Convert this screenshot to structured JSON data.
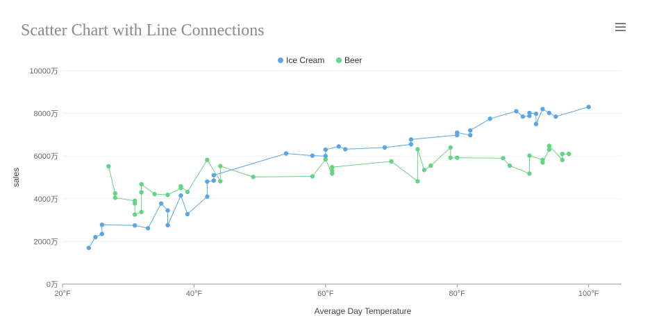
{
  "page": {
    "title": "Scatter Chart with Line Connections",
    "menu_icon": "hamburger-menu-icon"
  },
  "chart_data": {
    "type": "scatter",
    "title": "Scatter Chart with Line Connections",
    "xlabel": "Average Day Temperature",
    "ylabel": "sales",
    "xlim": [
      20,
      105
    ],
    "ylim": [
      0,
      10000
    ],
    "x_ticks": [
      "20°F",
      "40°F",
      "60°F",
      "80°F",
      "100°F"
    ],
    "x_tick_values": [
      20,
      40,
      60,
      80,
      100
    ],
    "y_ticks": [
      "0万",
      "2000万",
      "4000万",
      "6000万",
      "8000万",
      "10000万"
    ],
    "y_tick_values": [
      0,
      2000,
      4000,
      6000,
      8000,
      10000
    ],
    "grid": true,
    "legend_position": "top-center",
    "lines_connect_points": true,
    "series": [
      {
        "name": "Ice Cream",
        "color": "#5aa6e5",
        "points": [
          [
            24,
            1700
          ],
          [
            25,
            2200
          ],
          [
            26,
            2350
          ],
          [
            26,
            2780
          ],
          [
            31,
            2750
          ],
          [
            33,
            2620
          ],
          [
            35,
            3780
          ],
          [
            36,
            3450
          ],
          [
            36,
            2760
          ],
          [
            38,
            4150
          ],
          [
            39,
            3280
          ],
          [
            42,
            4100
          ],
          [
            42,
            4800
          ],
          [
            43,
            4850
          ],
          [
            43,
            5100
          ],
          [
            54,
            6120
          ],
          [
            58,
            6020
          ],
          [
            60,
            6000
          ],
          [
            60,
            6300
          ],
          [
            62,
            6450
          ],
          [
            63,
            6320
          ],
          [
            69,
            6400
          ],
          [
            73,
            6550
          ],
          [
            73,
            6780
          ],
          [
            80,
            6980
          ],
          [
            80,
            7100
          ],
          [
            82,
            6980
          ],
          [
            82,
            7200
          ],
          [
            85,
            7750
          ],
          [
            89,
            8100
          ],
          [
            90,
            7850
          ],
          [
            91,
            7880
          ],
          [
            91,
            8020
          ],
          [
            92,
            7980
          ],
          [
            92,
            7500
          ],
          [
            93,
            8200
          ],
          [
            94,
            8020
          ],
          [
            95,
            7850
          ],
          [
            100,
            8300
          ]
        ]
      },
      {
        "name": "Beer",
        "color": "#64d383",
        "points": [
          [
            27,
            5520
          ],
          [
            28,
            4250
          ],
          [
            28,
            4050
          ],
          [
            31,
            3900
          ],
          [
            31,
            3780
          ],
          [
            31,
            3260
          ],
          [
            32,
            3380
          ],
          [
            32,
            4300
          ],
          [
            32,
            4680
          ],
          [
            34,
            4220
          ],
          [
            36,
            4180
          ],
          [
            38,
            4500
          ],
          [
            38,
            4580
          ],
          [
            39,
            4320
          ],
          [
            42,
            5820
          ],
          [
            44,
            4820
          ],
          [
            44,
            5530
          ],
          [
            49,
            5020
          ],
          [
            58,
            5050
          ],
          [
            60,
            5840
          ],
          [
            61,
            5180
          ],
          [
            61,
            5300
          ],
          [
            61,
            5480
          ],
          [
            70,
            5750
          ],
          [
            74,
            4820
          ],
          [
            74,
            6320
          ],
          [
            75,
            5350
          ],
          [
            76,
            5550
          ],
          [
            79,
            6400
          ],
          [
            79,
            5920
          ],
          [
            80,
            5920
          ],
          [
            87,
            5900
          ],
          [
            88,
            5550
          ],
          [
            91,
            5180
          ],
          [
            91,
            6020
          ],
          [
            93,
            5820
          ],
          [
            93,
            5700
          ],
          [
            94,
            6300
          ],
          [
            94,
            6480
          ],
          [
            96,
            5820
          ],
          [
            96,
            6100
          ],
          [
            97,
            6100
          ]
        ]
      }
    ]
  }
}
